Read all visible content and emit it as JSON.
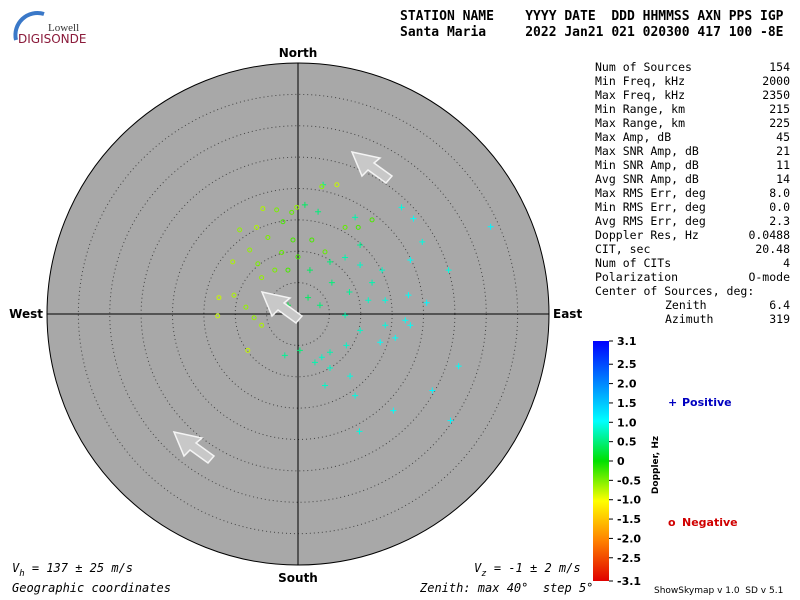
{
  "logo": {
    "top": "Lowell",
    "bottom": "DIGISONDE"
  },
  "header": {
    "labels": "STATION NAME    YYYY DATE  DDD HHMMSS AXN PPS IGP",
    "values": "Santa Maria     2022 Jan21 021 020300 417 100 -8E"
  },
  "stats": [
    [
      "Num of Sources",
      "154"
    ],
    [
      "Min Freq, kHz",
      "2000"
    ],
    [
      "Max Freq, kHz",
      "2350"
    ],
    [
      "Min Range, km",
      "215"
    ],
    [
      "Max Range, km",
      "225"
    ],
    [
      "Max Amp, dB",
      "45"
    ],
    [
      "Max SNR Amp, dB",
      "21"
    ],
    [
      "Min SNR Amp, dB",
      "11"
    ],
    [
      "Avg SNR Amp, dB",
      "14"
    ],
    [
      "Max RMS Err, deg",
      "8.0"
    ],
    [
      "Min RMS Err, deg",
      "0.0"
    ],
    [
      "Avg RMS Err, deg",
      "2.3"
    ],
    [
      "Doppler Res, Hz",
      "0.0488"
    ],
    [
      "CIT, sec",
      "20.48"
    ],
    [
      "Num of CITs",
      "4"
    ],
    [
      "Polarization",
      "O-mode"
    ],
    [
      "Center of Sources, deg:"
    ],
    [
      "Zenith",
      "6.4"
    ],
    [
      "Azimuth",
      "319"
    ]
  ],
  "footer": {
    "vh": [
      "V",
      "h",
      " = 137 ± 25 m/s"
    ],
    "vz": [
      "V",
      "z",
      " = -1 ± 2 m/s"
    ],
    "coords": "Geographic coordinates",
    "zenith": "Zenith: max 40°  step 5°",
    "version": "ShowSkymap v 1.0  SD v 5.1"
  },
  "chart_data": {
    "type": "skymap",
    "directions": {
      "north": "North",
      "south": "South",
      "east": "East",
      "west": "West"
    },
    "rlim": [
      0,
      40
    ],
    "rticks": [
      5,
      10,
      15,
      20,
      25,
      30,
      35
    ],
    "background": "#a8a8a8",
    "colorbar": {
      "label": "Doppler, Hz",
      "lim": [
        -3.1,
        3.1
      ],
      "colormap": [
        "#e00000",
        "#ff8000",
        "#ffff00",
        "#00e000",
        "#00ffff",
        "#0080ff",
        "#0000ff"
      ],
      "ticks": [
        3.1,
        2.5,
        {
          "value": 2,
          "label": "2.0"
        },
        1.5,
        {
          "value": 1,
          "label": "1.0"
        },
        0.5,
        0,
        -0.5,
        {
          "value": -1,
          "label": "-1.0"
        },
        -1.5,
        {
          "value": -2,
          "label": "-2.0"
        },
        -2.5,
        -3.1
      ]
    },
    "series": [
      {
        "name": "Positive",
        "marker": "+",
        "color": "#0000c0",
        "x": [
          4.0,
          1.1,
          3.2,
          9.1,
          18.4,
          16.5,
          30.7,
          19.8,
          9.9,
          5.1,
          7.5,
          9.9,
          17.9,
          24.0,
          13.4,
          11.8,
          8.2,
          5.4,
          1.9,
          1.6,
          -1.6,
          3.5,
          7.5,
          11.2,
          13.9,
          17.6,
          17.1,
          13.9,
          9.9,
          13.1,
          7.7,
          5.1,
          3.8,
          2.7,
          0.3,
          -2.1,
          5.1,
          8.3,
          4.3,
          9.1,
          15.2,
          21.4,
          25.6,
          24.3,
          9.8,
          17.9,
          20.5,
          15.5
        ],
        "y": [
          20.6,
          17.4,
          16.3,
          15.4,
          15.2,
          17.0,
          13.9,
          11.5,
          11.0,
          8.3,
          9.0,
          7.8,
          8.6,
          7.0,
          7.0,
          5.0,
          3.5,
          5.0,
          7.0,
          2.6,
          1.4,
          1.4,
          -0.2,
          2.2,
          2.2,
          3.0,
          -1.0,
          -1.8,
          -2.6,
          -4.5,
          -5.0,
          -6.1,
          -6.9,
          -7.7,
          -5.8,
          -6.6,
          -8.6,
          -9.9,
          -11.4,
          -13.0,
          -15.4,
          -12.2,
          -8.3,
          -17.0,
          -18.7,
          -1.8,
          1.8,
          -3.8
        ],
        "doppler": [
          0.6,
          0.4,
          0.5,
          0.7,
          1.0,
          0.9,
          1.1,
          0.9,
          0.6,
          0.5,
          0.7,
          0.8,
          1.0,
          0.9,
          0.8,
          0.7,
          0.6,
          0.5,
          0.4,
          0.4,
          0.3,
          0.5,
          0.7,
          0.8,
          0.9,
          1.0,
          1.0,
          0.9,
          0.8,
          1.0,
          0.8,
          0.7,
          0.8,
          0.7,
          0.5,
          0.6,
          0.8,
          0.9,
          0.8,
          0.9,
          1.0,
          1.1,
          1.0,
          1.1,
          0.9,
          1.0,
          1.1,
          1.0
        ]
      },
      {
        "name": "Negative",
        "marker": "o",
        "color": "#d00000",
        "x": [
          6.2,
          3.8,
          -5.6,
          -3.4,
          -1.0,
          -0.2,
          -9.3,
          -6.6,
          -2.4,
          -4.8,
          -0.8,
          -7.7,
          -10.4,
          -6.4,
          -2.6,
          0,
          -3.7,
          -5.8,
          -1.6,
          -12.6,
          -10.2,
          -8.3,
          -12.8,
          -7.0,
          -5.8,
          -8.0,
          7.5,
          11.8,
          2.2,
          4.3,
          9.6
        ],
        "y": [
          20.6,
          20.3,
          16.8,
          16.6,
          16.2,
          17.0,
          13.4,
          13.8,
          14.7,
          12.2,
          11.8,
          10.2,
          8.3,
          8.0,
          9.8,
          9.1,
          7.0,
          5.8,
          7.0,
          2.6,
          3.0,
          1.1,
          -0.3,
          -0.6,
          -1.8,
          -5.8,
          13.8,
          15.0,
          11.8,
          9.9,
          13.8
        ],
        "doppler": [
          -0.8,
          -0.6,
          -0.7,
          -0.5,
          -0.4,
          -0.6,
          -0.6,
          -0.7,
          -0.3,
          -0.5,
          -0.3,
          -0.6,
          -0.7,
          -0.5,
          -0.4,
          -0.3,
          -0.5,
          -0.6,
          -0.3,
          -0.8,
          -0.7,
          -0.6,
          -0.8,
          -0.6,
          -0.7,
          -0.8,
          -0.4,
          -0.3,
          -0.3,
          -0.4,
          -0.3
        ]
      }
    ]
  }
}
